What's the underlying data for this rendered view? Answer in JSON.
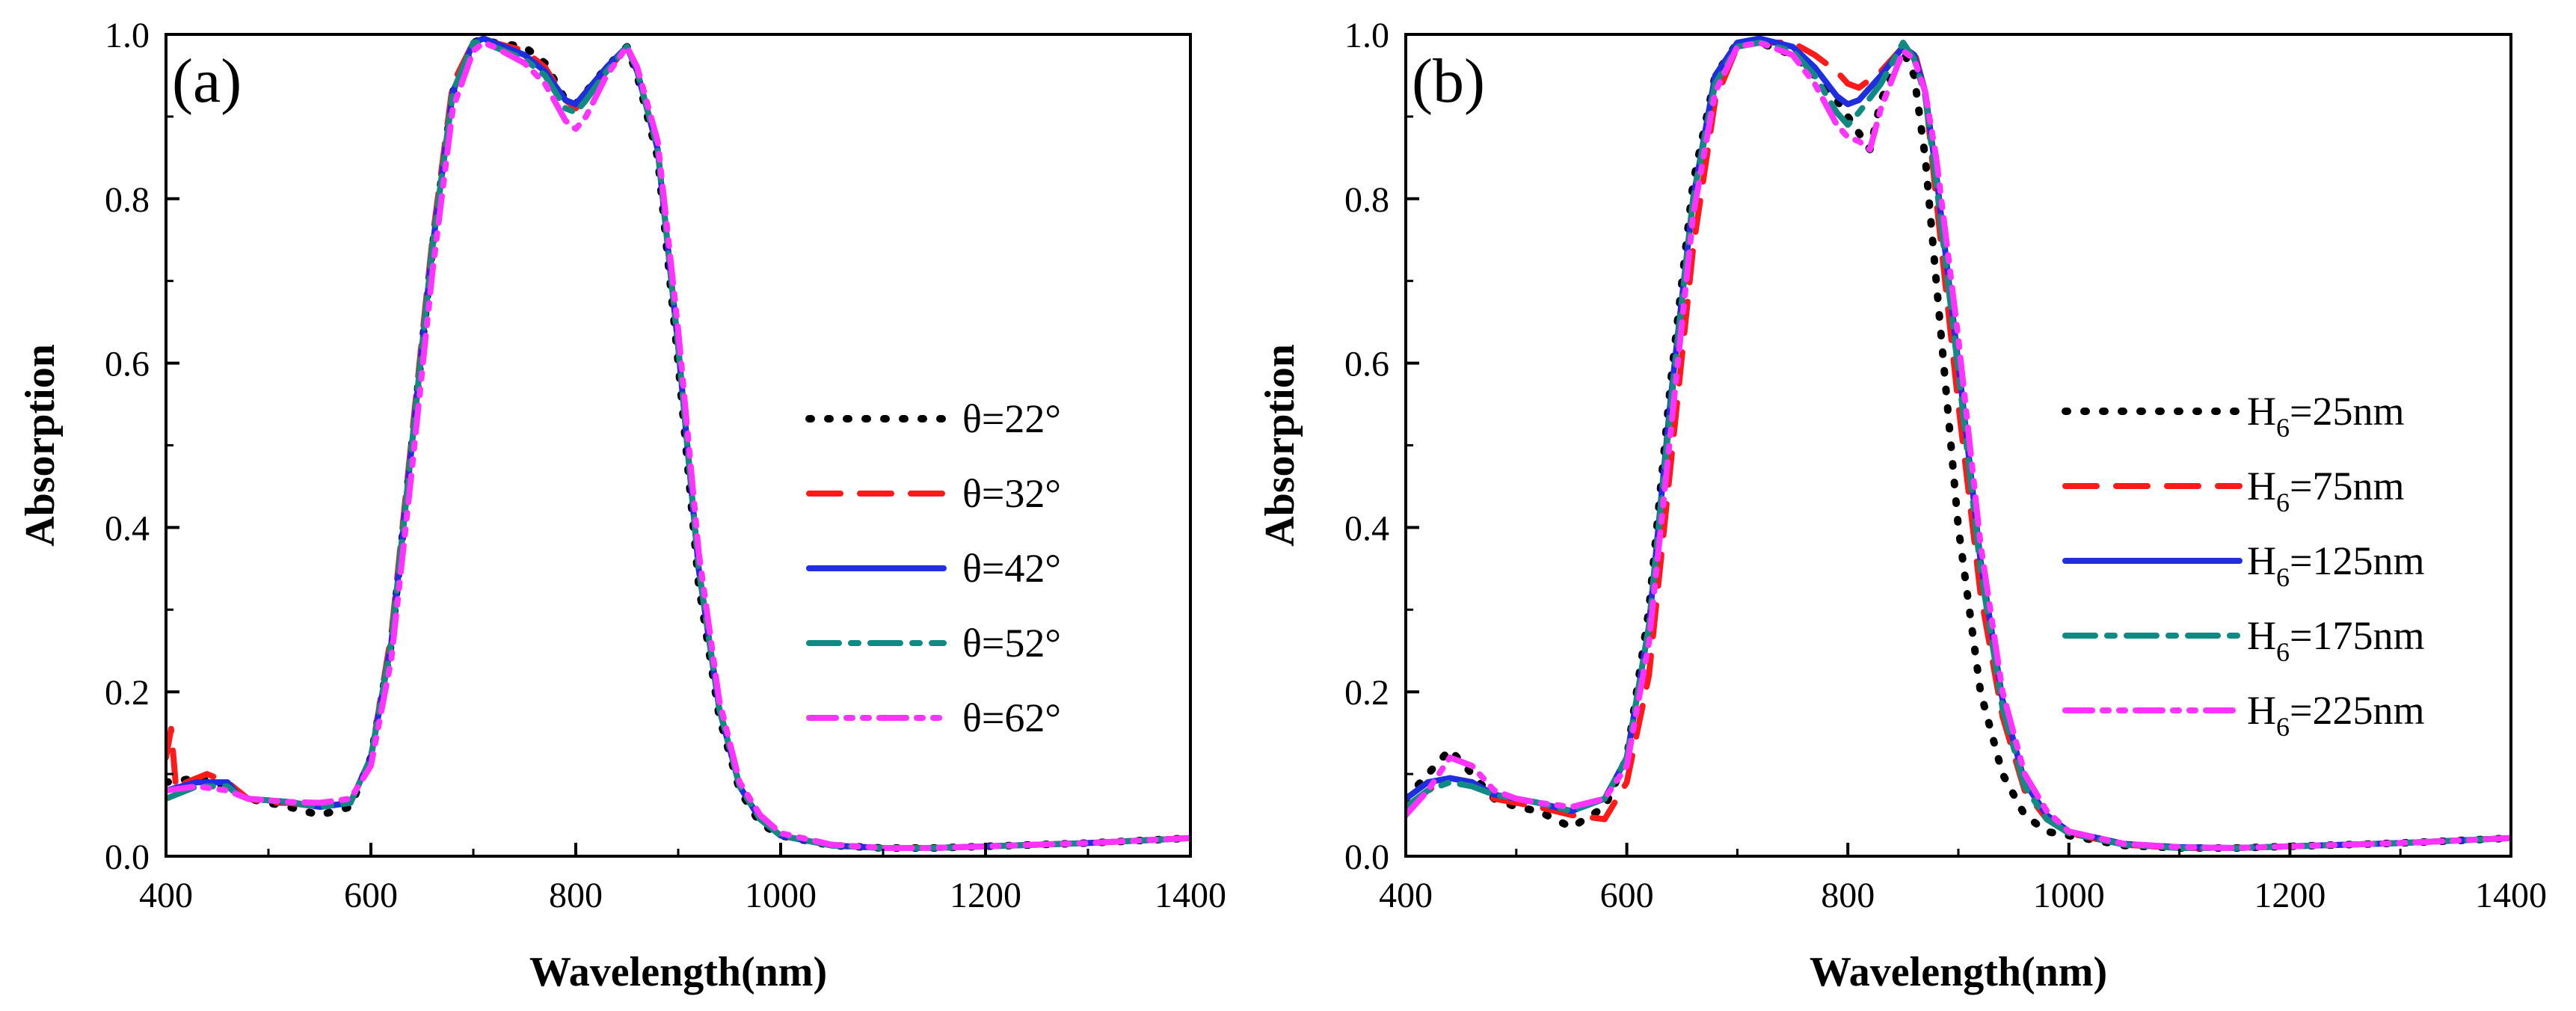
{
  "colors": {
    "black": "#000000",
    "red": "#ff1a1a",
    "blue": "#1f2fe0",
    "teal": "#118a83",
    "magenta": "#ff33ff"
  },
  "chart_data": [
    {
      "type": "line",
      "panel_label": "(a)",
      "xlabel": "Wavelength(nm)",
      "ylabel": "Absorption",
      "xlim": [
        400,
        1400
      ],
      "ylim": [
        0,
        1.0
      ],
      "xticks": [
        400,
        600,
        800,
        1000,
        1200,
        1400
      ],
      "yticks": [
        0.0,
        0.2,
        0.4,
        0.6,
        0.8,
        1.0
      ],
      "xtick_labels": [
        "400",
        "600",
        "800",
        "1000",
        "1200",
        "1400"
      ],
      "ytick_labels": [
        "0.0",
        "0.2",
        "0.4",
        "0.6",
        "0.8",
        "1.0"
      ],
      "legend_position": "center-right",
      "series": [
        {
          "name": "θ=22°",
          "style": "dotted",
          "color": "#000000",
          "x": [
            400,
            430,
            460,
            480,
            500,
            520,
            550,
            580,
            600,
            620,
            640,
            660,
            680,
            700,
            710,
            720,
            750,
            770,
            790,
            800,
            810,
            830,
            850,
            860,
            880,
            900,
            920,
            940,
            960,
            980,
            1000,
            1050,
            1100,
            1150,
            1200,
            1300,
            1400
          ],
          "y": [
            0.09,
            0.095,
            0.085,
            0.07,
            0.065,
            0.06,
            0.05,
            0.06,
            0.12,
            0.26,
            0.5,
            0.74,
            0.93,
            0.99,
            0.995,
            0.99,
            0.985,
            0.965,
            0.92,
            0.915,
            0.93,
            0.96,
            0.985,
            0.95,
            0.85,
            0.6,
            0.33,
            0.17,
            0.08,
            0.04,
            0.025,
            0.013,
            0.01,
            0.01,
            0.012,
            0.016,
            0.022
          ]
        },
        {
          "name": "θ=32°",
          "style": "dashed",
          "color": "#ff1a1a",
          "x": [
            400,
            405,
            410,
            420,
            440,
            460,
            480,
            500,
            520,
            550,
            580,
            600,
            620,
            640,
            660,
            680,
            700,
            710,
            720,
            750,
            770,
            790,
            800,
            810,
            830,
            850,
            860,
            880,
            900,
            920,
            940,
            960,
            980,
            1000,
            1050,
            1100,
            1150,
            1200,
            1300,
            1400
          ],
          "y": [
            0.12,
            0.155,
            0.08,
            0.09,
            0.1,
            0.09,
            0.07,
            0.065,
            0.065,
            0.06,
            0.065,
            0.12,
            0.27,
            0.51,
            0.75,
            0.94,
            0.99,
            0.995,
            0.99,
            0.98,
            0.96,
            0.92,
            0.91,
            0.925,
            0.955,
            0.985,
            0.955,
            0.86,
            0.62,
            0.35,
            0.18,
            0.085,
            0.045,
            0.025,
            0.013,
            0.01,
            0.01,
            0.012,
            0.016,
            0.022
          ]
        },
        {
          "name": "θ=42°",
          "style": "solid",
          "color": "#1f2fe0",
          "x": [
            400,
            430,
            460,
            470,
            480,
            500,
            520,
            550,
            580,
            600,
            620,
            640,
            660,
            680,
            700,
            710,
            720,
            750,
            770,
            790,
            800,
            810,
            830,
            850,
            860,
            880,
            900,
            920,
            940,
            960,
            980,
            1000,
            1050,
            1100,
            1150,
            1200,
            1300,
            1400
          ],
          "y": [
            0.08,
            0.09,
            0.09,
            0.075,
            0.07,
            0.068,
            0.066,
            0.06,
            0.065,
            0.12,
            0.26,
            0.5,
            0.74,
            0.93,
            0.99,
            0.995,
            0.99,
            0.975,
            0.955,
            0.92,
            0.915,
            0.93,
            0.96,
            0.985,
            0.955,
            0.86,
            0.62,
            0.35,
            0.18,
            0.085,
            0.045,
            0.025,
            0.013,
            0.01,
            0.01,
            0.012,
            0.016,
            0.022
          ]
        },
        {
          "name": "θ=52°",
          "style": "dashdot",
          "color": "#118a83",
          "x": [
            400,
            430,
            460,
            470,
            480,
            500,
            520,
            550,
            580,
            600,
            620,
            640,
            660,
            680,
            700,
            710,
            720,
            750,
            770,
            790,
            800,
            810,
            830,
            850,
            860,
            880,
            900,
            920,
            940,
            960,
            980,
            1000,
            1050,
            1100,
            1150,
            1200,
            1300,
            1400
          ],
          "y": [
            0.07,
            0.085,
            0.085,
            0.075,
            0.07,
            0.068,
            0.066,
            0.06,
            0.065,
            0.12,
            0.26,
            0.5,
            0.74,
            0.93,
            0.99,
            0.99,
            0.985,
            0.97,
            0.95,
            0.91,
            0.905,
            0.92,
            0.955,
            0.985,
            0.955,
            0.86,
            0.62,
            0.35,
            0.18,
            0.085,
            0.045,
            0.025,
            0.013,
            0.01,
            0.01,
            0.012,
            0.016,
            0.022
          ]
        },
        {
          "name": "θ=62°",
          "style": "dashdotdot",
          "color": "#ff33ff",
          "x": [
            400,
            430,
            460,
            470,
            480,
            500,
            520,
            550,
            580,
            600,
            620,
            640,
            660,
            680,
            700,
            710,
            720,
            750,
            770,
            790,
            800,
            810,
            830,
            850,
            860,
            880,
            900,
            920,
            940,
            960,
            980,
            1000,
            1050,
            1100,
            1150,
            1200,
            1300,
            1400
          ],
          "y": [
            0.08,
            0.085,
            0.08,
            0.075,
            0.07,
            0.068,
            0.066,
            0.065,
            0.07,
            0.11,
            0.24,
            0.47,
            0.71,
            0.91,
            0.98,
            0.99,
            0.985,
            0.965,
            0.94,
            0.895,
            0.885,
            0.9,
            0.95,
            0.985,
            0.96,
            0.87,
            0.64,
            0.37,
            0.19,
            0.09,
            0.05,
            0.028,
            0.014,
            0.01,
            0.01,
            0.012,
            0.016,
            0.022
          ]
        }
      ]
    },
    {
      "type": "line",
      "panel_label": "(b)",
      "xlabel": "Wavelength(nm)",
      "ylabel": "Absorption",
      "xlim": [
        400,
        1400
      ],
      "ylim": [
        0,
        1.0
      ],
      "xticks": [
        400,
        600,
        800,
        1000,
        1200,
        1400
      ],
      "yticks": [
        0.0,
        0.2,
        0.4,
        0.6,
        0.8,
        1.0
      ],
      "xtick_labels": [
        "400",
        "600",
        "800",
        "1000",
        "1200",
        "1400"
      ],
      "ytick_labels": [
        "0.0",
        "0.2",
        "0.4",
        "0.6",
        "0.8",
        "1.0"
      ],
      "legend_position": "center-right",
      "series": [
        {
          "name": "H6=25nm",
          "label_main": "H",
          "label_sub": "6",
          "label_rest": "=25nm",
          "style": "dotted",
          "color": "#000000",
          "x": [
            400,
            420,
            440,
            460,
            480,
            500,
            520,
            550,
            580,
            600,
            620,
            640,
            660,
            680,
            700,
            720,
            750,
            770,
            790,
            800,
            810,
            820,
            830,
            850,
            860,
            870,
            880,
            900,
            920,
            940,
            960,
            980,
            1000,
            1050,
            1100,
            1150,
            1200,
            1300,
            1400
          ],
          "y": [
            0.07,
            0.1,
            0.13,
            0.1,
            0.07,
            0.06,
            0.055,
            0.035,
            0.06,
            0.12,
            0.3,
            0.58,
            0.82,
            0.95,
            0.99,
            0.99,
            0.975,
            0.95,
            0.92,
            0.9,
            0.88,
            0.86,
            0.92,
            0.98,
            0.95,
            0.85,
            0.7,
            0.4,
            0.2,
            0.1,
            0.05,
            0.03,
            0.025,
            0.013,
            0.01,
            0.01,
            0.012,
            0.016,
            0.022
          ]
        },
        {
          "name": "H6=75nm",
          "label_main": "H",
          "label_sub": "6",
          "label_rest": "=75nm",
          "style": "dashed",
          "color": "#ff1a1a",
          "x": [
            400,
            420,
            440,
            460,
            480,
            500,
            520,
            550,
            580,
            600,
            620,
            640,
            660,
            680,
            700,
            720,
            750,
            770,
            790,
            800,
            810,
            830,
            850,
            860,
            870,
            880,
            900,
            920,
            940,
            960,
            980,
            1000,
            1050,
            1100,
            1150,
            1200,
            1300,
            1400
          ],
          "y": [
            0.06,
            0.08,
            0.095,
            0.09,
            0.07,
            0.065,
            0.06,
            0.05,
            0.045,
            0.09,
            0.22,
            0.48,
            0.74,
            0.92,
            0.985,
            0.99,
            0.99,
            0.975,
            0.955,
            0.94,
            0.935,
            0.955,
            0.985,
            0.98,
            0.93,
            0.8,
            0.55,
            0.32,
            0.17,
            0.08,
            0.045,
            0.028,
            0.014,
            0.01,
            0.01,
            0.012,
            0.016,
            0.022
          ]
        },
        {
          "name": "H6=125nm",
          "label_main": "H",
          "label_sub": "6",
          "label_rest": "=125nm",
          "style": "solid",
          "color": "#1f2fe0",
          "x": [
            400,
            420,
            440,
            460,
            480,
            500,
            520,
            550,
            580,
            600,
            620,
            640,
            660,
            680,
            700,
            720,
            750,
            770,
            790,
            800,
            810,
            830,
            850,
            860,
            870,
            880,
            900,
            920,
            940,
            960,
            980,
            1000,
            1050,
            1100,
            1150,
            1200,
            1300,
            1400
          ],
          "y": [
            0.07,
            0.09,
            0.095,
            0.09,
            0.075,
            0.07,
            0.065,
            0.055,
            0.07,
            0.12,
            0.28,
            0.56,
            0.8,
            0.95,
            0.99,
            0.995,
            0.985,
            0.96,
            0.925,
            0.915,
            0.92,
            0.95,
            0.985,
            0.975,
            0.93,
            0.83,
            0.6,
            0.36,
            0.19,
            0.09,
            0.05,
            0.03,
            0.015,
            0.011,
            0.01,
            0.012,
            0.016,
            0.022
          ]
        },
        {
          "name": "H6=175nm",
          "label_main": "H",
          "label_sub": "6",
          "label_rest": "=175nm",
          "style": "dashdot",
          "color": "#118a83",
          "x": [
            400,
            420,
            440,
            460,
            480,
            500,
            520,
            550,
            580,
            600,
            620,
            640,
            660,
            680,
            700,
            720,
            750,
            770,
            790,
            800,
            810,
            830,
            850,
            860,
            870,
            880,
            900,
            920,
            940,
            960,
            980,
            1000,
            1050,
            1100,
            1150,
            1200,
            1300,
            1400
          ],
          "y": [
            0.06,
            0.08,
            0.09,
            0.085,
            0.075,
            0.07,
            0.065,
            0.055,
            0.07,
            0.12,
            0.28,
            0.55,
            0.8,
            0.94,
            0.985,
            0.99,
            0.98,
            0.95,
            0.905,
            0.89,
            0.905,
            0.94,
            0.99,
            0.97,
            0.925,
            0.82,
            0.59,
            0.35,
            0.18,
            0.085,
            0.045,
            0.028,
            0.014,
            0.01,
            0.01,
            0.012,
            0.016,
            0.022
          ]
        },
        {
          "name": "H6=225nm",
          "label_main": "H",
          "label_sub": "6",
          "label_rest": "=225nm",
          "style": "dashdotdot",
          "color": "#ff33ff",
          "x": [
            400,
            420,
            440,
            460,
            480,
            500,
            520,
            550,
            580,
            600,
            620,
            640,
            660,
            680,
            700,
            720,
            750,
            770,
            790,
            800,
            810,
            820,
            830,
            850,
            860,
            870,
            880,
            900,
            920,
            940,
            960,
            980,
            1000,
            1050,
            1100,
            1150,
            1200,
            1300,
            1400
          ],
          "y": [
            0.05,
            0.08,
            0.12,
            0.11,
            0.08,
            0.07,
            0.065,
            0.06,
            0.07,
            0.11,
            0.26,
            0.52,
            0.78,
            0.93,
            0.985,
            0.99,
            0.975,
            0.94,
            0.89,
            0.875,
            0.87,
            0.86,
            0.91,
            0.98,
            0.97,
            0.93,
            0.85,
            0.63,
            0.38,
            0.2,
            0.1,
            0.055,
            0.03,
            0.015,
            0.011,
            0.01,
            0.012,
            0.016,
            0.022
          ]
        }
      ]
    }
  ]
}
